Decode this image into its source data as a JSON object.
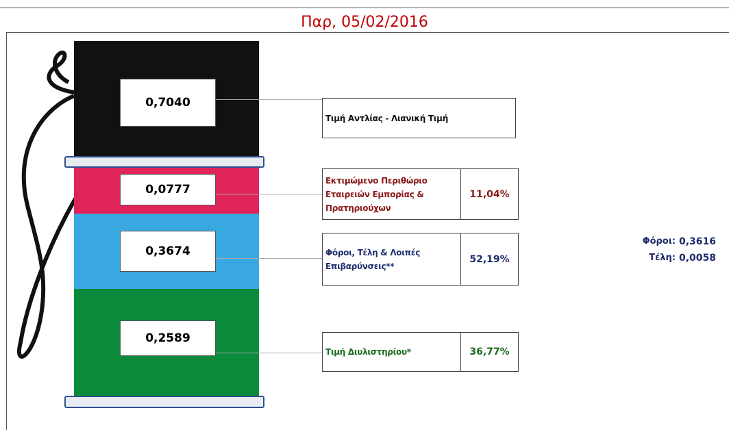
{
  "title": "Παρ, 05/02/2016",
  "retail": {
    "value": "0,7040",
    "label": "Τιμή Αντλίας - Λιανική Τιμή"
  },
  "components": [
    {
      "value": "0,0777",
      "label": "Εκτιμώμενο Περιθώριο Εταιρειών Εμπορίας & Πρατηριούχων",
      "percent": "11,04%"
    },
    {
      "value": "0,3674",
      "label": "Φόροι, Τέλη & Λοιπές Επιβαρύνσεις**",
      "percent": "52,19%"
    },
    {
      "value": "0,2589",
      "label": "Τιμή Διυλιστηρίου*",
      "percent": "36,77%"
    }
  ],
  "breakdown": [
    {
      "label": "Φόροι:",
      "value": "0,3616"
    },
    {
      "label": "Τέλη:",
      "value": "0,0058"
    }
  ]
}
